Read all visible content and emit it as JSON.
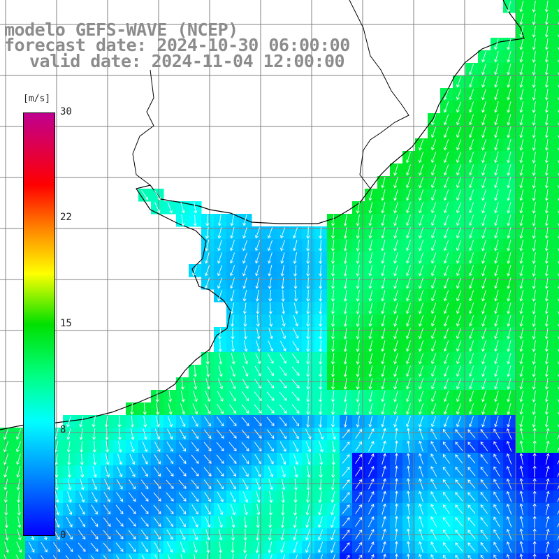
{
  "title": {
    "line1": "modelo GEFS-WAVE (NCEP)",
    "line2": "forecast date: 2024-10-30 06:00:00",
    "line3": "valid date: 2024-11-04 12:00:00"
  },
  "colorbar": {
    "unit": "[m/s]",
    "min": 0,
    "max": 30,
    "ticks": [
      "30",
      "22",
      "15",
      "8",
      "0"
    ],
    "tick_values": [
      30,
      22,
      15,
      8,
      0
    ],
    "colors": [
      "#0000ff",
      "#0080ff",
      "#00ffff",
      "#00ff80",
      "#00e000",
      "#ffff00",
      "#ff8000",
      "#ff0000",
      "#c00090"
    ]
  },
  "map": {
    "lon_range": [
      -65,
      -42
    ],
    "lat_range": [
      -42,
      -28
    ],
    "land_color": "#ffffff",
    "grid_color": "#808080",
    "coast_color": "#000000",
    "arrow_color": "#ffffff"
  }
}
